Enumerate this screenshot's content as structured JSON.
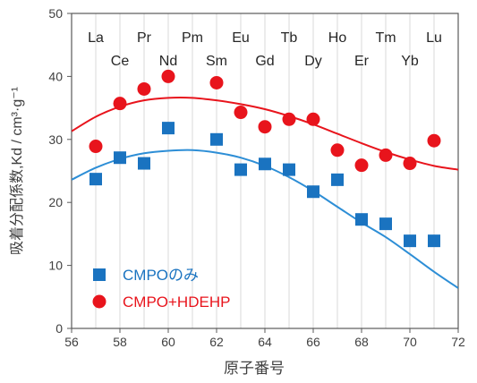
{
  "chart_data": {
    "type": "scatter",
    "xlabel": "原子番号",
    "ylabel": "吸着分配係数,Kd / cm³·g⁻¹",
    "xlim": [
      56,
      72
    ],
    "ylim": [
      0,
      50
    ],
    "xticks": [
      56,
      58,
      60,
      62,
      64,
      66,
      68,
      70,
      72
    ],
    "yticks": [
      0,
      10,
      20,
      30,
      40,
      50
    ],
    "grid": "vertical lines at each element (x = 57–71)",
    "legend_position": "bottom-left",
    "element_labels": [
      {
        "x": 57,
        "label": "La",
        "row": "top"
      },
      {
        "x": 58,
        "label": "Ce",
        "row": "bottom"
      },
      {
        "x": 59,
        "label": "Pr",
        "row": "top"
      },
      {
        "x": 60,
        "label": "Nd",
        "row": "bottom"
      },
      {
        "x": 61,
        "label": "Pm",
        "row": "top"
      },
      {
        "x": 62,
        "label": "Sm",
        "row": "bottom"
      },
      {
        "x": 63,
        "label": "Eu",
        "row": "top"
      },
      {
        "x": 64,
        "label": "Gd",
        "row": "bottom"
      },
      {
        "x": 65,
        "label": "Tb",
        "row": "top"
      },
      {
        "x": 66,
        "label": "Dy",
        "row": "bottom"
      },
      {
        "x": 67,
        "label": "Ho",
        "row": "top"
      },
      {
        "x": 68,
        "label": "Er",
        "row": "bottom"
      },
      {
        "x": 69,
        "label": "Tm",
        "row": "top"
      },
      {
        "x": 70,
        "label": "Yb",
        "row": "bottom"
      },
      {
        "x": 71,
        "label": "Lu",
        "row": "top"
      }
    ],
    "series": [
      {
        "name": "CMPOのみ",
        "marker": "square",
        "color": "#1a73c0",
        "x": [
          57,
          58,
          59,
          60,
          62,
          63,
          64,
          65,
          66,
          67,
          68,
          69,
          70,
          71
        ],
        "y": [
          23.7,
          27.1,
          26.2,
          31.8,
          30.0,
          25.2,
          26.1,
          25.2,
          21.7,
          23.6,
          17.3,
          16.6,
          13.9,
          13.9
        ],
        "trend": {
          "color": "#2d8ed6",
          "x": [
            56,
            57,
            58,
            59,
            60,
            61,
            62,
            63,
            64,
            65,
            66,
            67,
            68,
            69,
            70,
            71,
            72
          ],
          "y": [
            23.6,
            25.5,
            26.9,
            27.8,
            28.2,
            28.3,
            27.9,
            27.1,
            25.8,
            24.0,
            21.8,
            19.3,
            16.8,
            14.5,
            11.8,
            9.0,
            6.4
          ]
        }
      },
      {
        "name": "CMPO+HDEHP",
        "marker": "circle",
        "color": "#e8141c",
        "x": [
          57,
          58,
          59,
          60,
          62,
          63,
          64,
          65,
          66,
          67,
          68,
          69,
          70,
          71
        ],
        "y": [
          28.9,
          35.7,
          38.0,
          40.0,
          39.0,
          34.3,
          32.0,
          33.2,
          33.2,
          28.3,
          25.9,
          27.5,
          26.2,
          29.8
        ],
        "trend": {
          "color": "#e8141c",
          "x": [
            56,
            57,
            58,
            59,
            60,
            61,
            62,
            63,
            64,
            65,
            66,
            67,
            68,
            69,
            70,
            71,
            72
          ],
          "y": [
            31.3,
            33.6,
            35.2,
            36.2,
            36.6,
            36.6,
            36.2,
            35.6,
            34.8,
            33.7,
            32.4,
            30.9,
            29.4,
            28.0,
            26.8,
            25.8,
            25.2
          ]
        }
      }
    ]
  }
}
